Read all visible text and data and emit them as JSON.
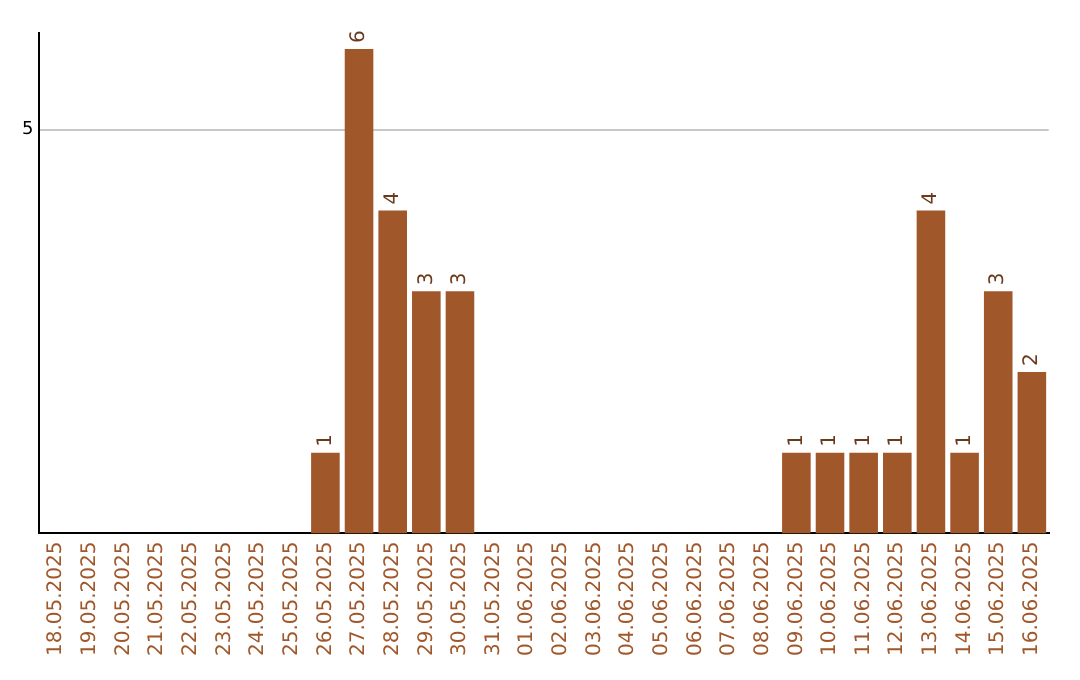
{
  "chart_data": {
    "type": "bar",
    "categories": [
      "18.05.2025",
      "19.05.2025",
      "20.05.2025",
      "21.05.2025",
      "22.05.2025",
      "23.05.2025",
      "24.05.2025",
      "25.05.2025",
      "26.05.2025",
      "27.05.2025",
      "28.05.2025",
      "29.05.2025",
      "30.05.2025",
      "31.05.2025",
      "01.06.2025",
      "02.06.2025",
      "03.06.2025",
      "04.06.2025",
      "05.06.2025",
      "06.06.2025",
      "07.06.2025",
      "08.06.2025",
      "09.06.2025",
      "10.06.2025",
      "11.06.2025",
      "12.06.2025",
      "13.06.2025",
      "14.06.2025",
      "15.06.2025",
      "16.06.2025"
    ],
    "values": [
      0,
      0,
      0,
      0,
      0,
      0,
      0,
      0,
      1,
      6,
      4,
      3,
      3,
      0,
      0,
      0,
      0,
      0,
      0,
      0,
      0,
      0,
      1,
      1,
      1,
      1,
      4,
      1,
      3,
      2
    ],
    "value_labels": [
      null,
      null,
      null,
      null,
      null,
      null,
      null,
      null,
      "1",
      "6",
      "4",
      "3",
      "3",
      null,
      null,
      null,
      null,
      null,
      null,
      null,
      null,
      null,
      "1",
      "1",
      "1",
      "1",
      "4",
      "1",
      "3",
      "2"
    ],
    "color": "#a0572a",
    "ylim": [
      0,
      6.2
    ],
    "yticks": [
      5
    ],
    "grid": "y"
  }
}
